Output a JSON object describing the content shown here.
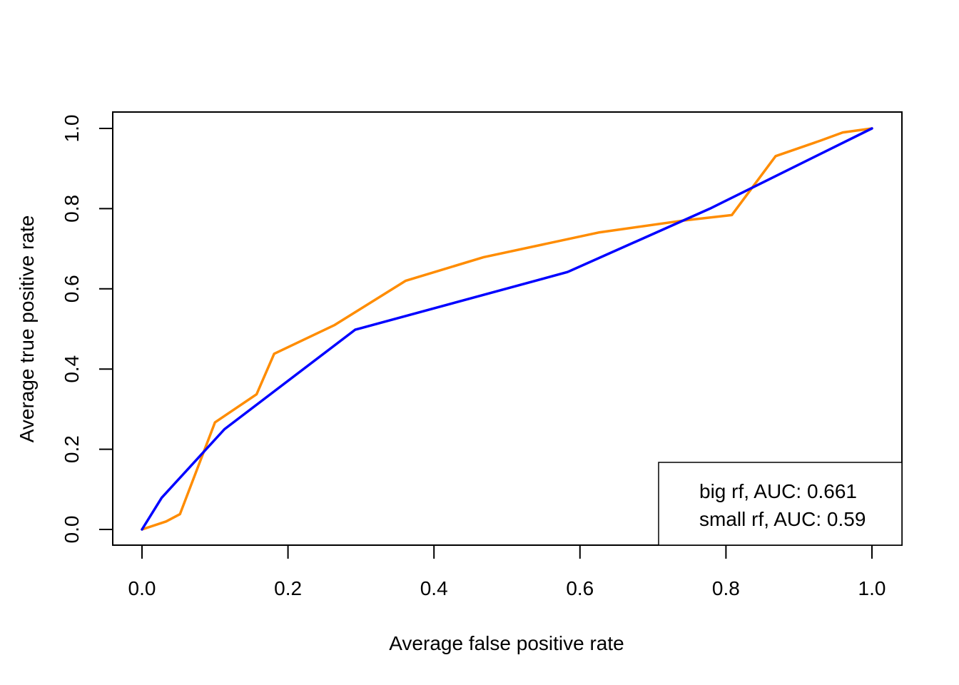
{
  "chart_data": {
    "type": "line",
    "title": "",
    "xlabel": "Average false positive rate",
    "ylabel": "Average true positive rate",
    "xlim": [
      0.0,
      1.0
    ],
    "ylim": [
      0.0,
      1.0
    ],
    "xticks": [
      "0.0",
      "0.2",
      "0.4",
      "0.6",
      "0.8",
      "1.0"
    ],
    "yticks": [
      "0.0",
      "0.2",
      "0.4",
      "0.6",
      "0.8",
      "1.0"
    ],
    "grid": false,
    "legend_position": "bottom-right",
    "series": [
      {
        "name": "big rf, AUC: 0.661",
        "color": "#FF8C00",
        "x": [
          0.0,
          0.033,
          0.052,
          0.1,
          0.157,
          0.181,
          0.264,
          0.361,
          0.468,
          0.627,
          0.74,
          0.808,
          0.868,
          0.93,
          0.96,
          1.0
        ],
        "y": [
          0.0,
          0.02,
          0.038,
          0.267,
          0.337,
          0.438,
          0.51,
          0.62,
          0.679,
          0.741,
          0.77,
          0.784,
          0.931,
          0.97,
          0.99,
          1.0
        ]
      },
      {
        "name": "small rf, AUC: 0.59",
        "color": "#0000FF",
        "x": [
          0.0,
          0.027,
          0.113,
          0.292,
          0.583,
          0.778,
          1.0
        ],
        "y": [
          0.0,
          0.079,
          0.25,
          0.498,
          0.642,
          0.8,
          1.0
        ]
      }
    ]
  }
}
